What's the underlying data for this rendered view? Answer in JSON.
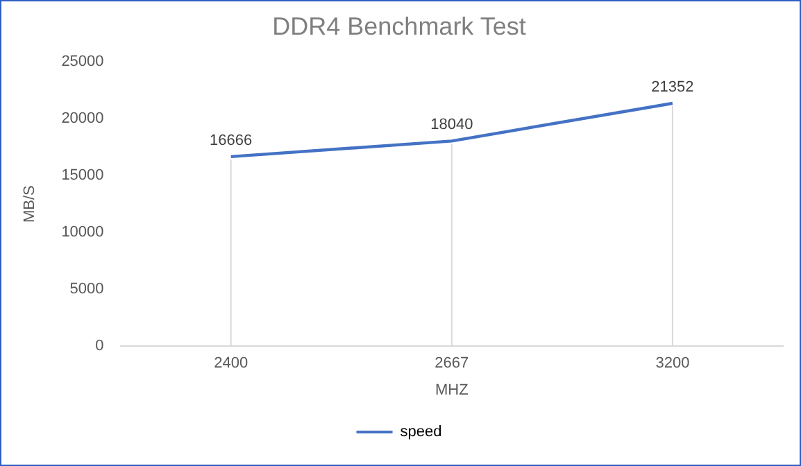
{
  "chart_data": {
    "type": "line",
    "title": "DDR4 Benchmark Test",
    "xlabel": "MHZ",
    "ylabel": "MB/S",
    "categories": [
      "2400",
      "2667",
      "3200"
    ],
    "series": [
      {
        "name": "speed",
        "color": "#4472c4",
        "values": [
          16666,
          18040,
          21352
        ]
      }
    ],
    "ylim": [
      0,
      25000
    ],
    "yticks": [
      0,
      5000,
      10000,
      15000,
      20000,
      25000
    ],
    "grid": "x",
    "legend": "bottom",
    "data_labels": true,
    "marker": "none",
    "line_style": "solid"
  }
}
